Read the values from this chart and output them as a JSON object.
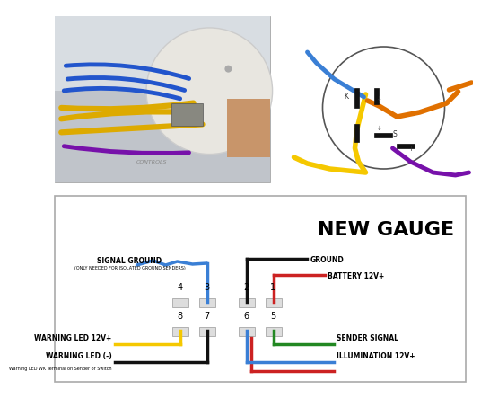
{
  "bg_color": "#ffffff",
  "diagram_title": "NEW GAUGE",
  "photo_bg": "#b0b8c0",
  "photo_gauge_color": "#e0ddd8",
  "wire_colors": {
    "blue": "#3a7fd5",
    "black": "#111111",
    "red": "#cc2222",
    "yellow": "#f5c800",
    "orange": "#e07000",
    "green": "#228822",
    "purple": "#7711aa"
  },
  "labels": {
    "signal_ground": "SIGNAL GROUND",
    "signal_ground_sub": "(ONLY NEEDED FOR ISOLATED GROUND SENDERS)",
    "ground": "GROUND",
    "battery": "BATTERY 12V+",
    "warning_led_plus": "WARNING LED 12V+",
    "warning_led_minus": "WARNING LED (-)",
    "warning_led_sub": "Warning LED WK Terminal on Sender or Switch",
    "sender": "SENDER SIGNAL",
    "illumination": "ILLUMINATION 12V+"
  },
  "pins_top": [
    "4",
    "3",
    "2",
    "1"
  ],
  "pins_bottom": [
    "8",
    "7",
    "6",
    "5"
  ]
}
